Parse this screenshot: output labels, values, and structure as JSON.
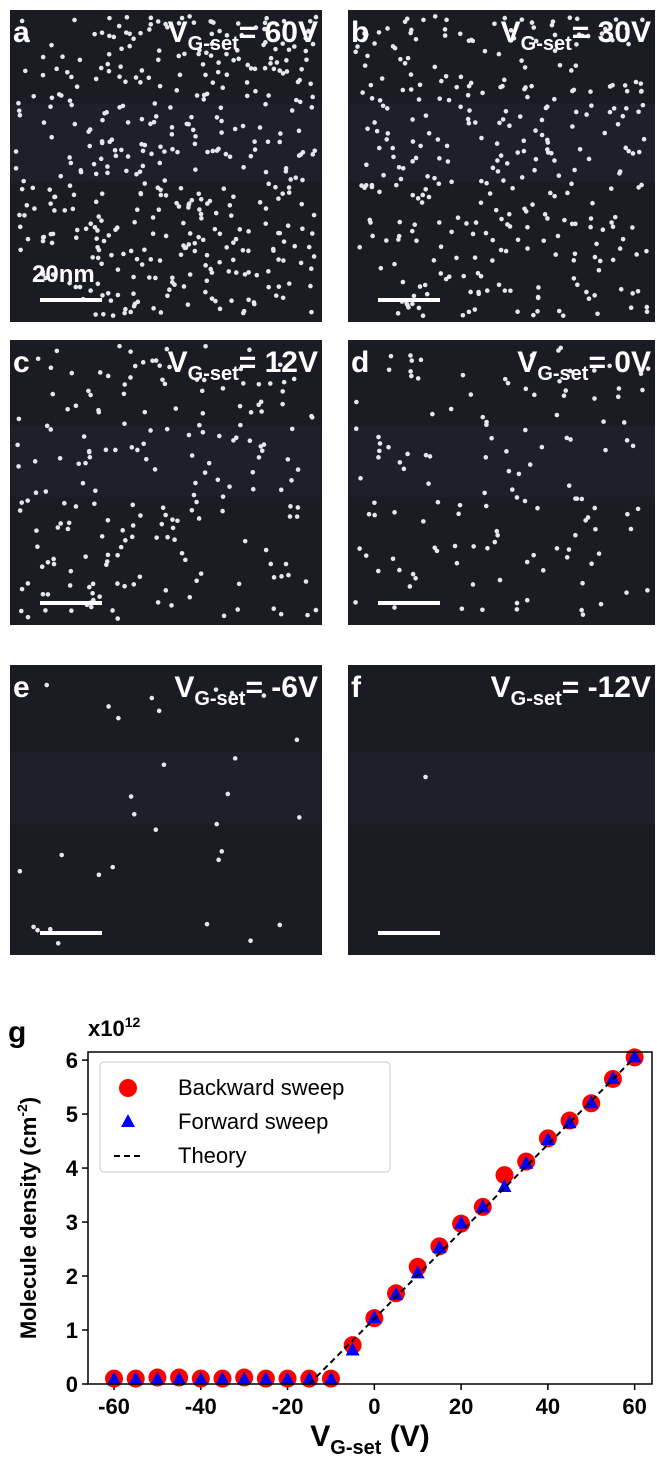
{
  "panels": [
    {
      "letter": "a",
      "v": "V",
      "sub": "G-set",
      "value": "= 60V",
      "scale_label": "20nm"
    },
    {
      "letter": "b",
      "v": "V",
      "sub": "G-set",
      "value": "= 30V"
    },
    {
      "letter": "c",
      "v": "V",
      "sub": "G-set",
      "value": "= 12V"
    },
    {
      "letter": "d",
      "v": "V",
      "sub": "G-set",
      "value": "= 0V"
    },
    {
      "letter": "e",
      "v": "V",
      "sub": "G-set",
      "value": "= -6V"
    },
    {
      "letter": "f",
      "v": "V",
      "sub": "G-set",
      "value": "= -12V"
    }
  ],
  "chart_data": {
    "type": "scatter",
    "letter": "g",
    "multiplier": {
      "base": "x10",
      "exponent": "12"
    },
    "ylabel": {
      "text": "Molecule density (cm",
      "sup": "-2",
      "end": ")"
    },
    "xlabel": {
      "v": "V",
      "sub": "G-set",
      "end": " (V)"
    },
    "xlim": [
      -66,
      64
    ],
    "ylim": [
      0,
      6.15
    ],
    "xticks": [
      -60,
      -40,
      -20,
      0,
      20,
      40,
      60
    ],
    "yticks": [
      0,
      1,
      2,
      3,
      4,
      5,
      6
    ],
    "legend": "upper left",
    "series": [
      {
        "name": "Backward sweep",
        "color": "#ff0000",
        "marker": "circle",
        "x": [
          -60,
          -55,
          -50,
          -45,
          -40,
          -35,
          -30,
          -25,
          -20,
          -15,
          -10,
          -5,
          0,
          5,
          10,
          15,
          20,
          25,
          30,
          35,
          40,
          45,
          50,
          55,
          60
        ],
        "values": [
          0.1,
          0.1,
          0.12,
          0.12,
          0.1,
          0.1,
          0.12,
          0.1,
          0.1,
          0.1,
          0.1,
          0.72,
          1.22,
          1.68,
          2.17,
          2.55,
          2.97,
          3.28,
          3.87,
          4.12,
          4.55,
          4.88,
          5.2,
          5.65,
          6.05
        ]
      },
      {
        "name": "Forward sweep",
        "color": "#0000ff",
        "marker": "triangle",
        "x": [
          -60,
          -55,
          -50,
          -45,
          -40,
          -35,
          -30,
          -25,
          -20,
          -15,
          -10,
          -5,
          0,
          5,
          10,
          15,
          20,
          25,
          30,
          35,
          40,
          45,
          50,
          55,
          60
        ],
        "values": [
          0.08,
          0.08,
          0.08,
          0.08,
          0.08,
          0.08,
          0.08,
          0.08,
          0.08,
          0.08,
          0.08,
          0.62,
          1.22,
          1.65,
          2.05,
          2.52,
          2.97,
          3.27,
          3.65,
          4.08,
          4.52,
          4.83,
          5.2,
          5.65,
          6.05
        ]
      },
      {
        "name": "Theory",
        "color": "#000000",
        "marker": "dashed-line",
        "x": [
          -15,
          60
        ],
        "values": [
          0,
          6.05
        ]
      }
    ]
  }
}
